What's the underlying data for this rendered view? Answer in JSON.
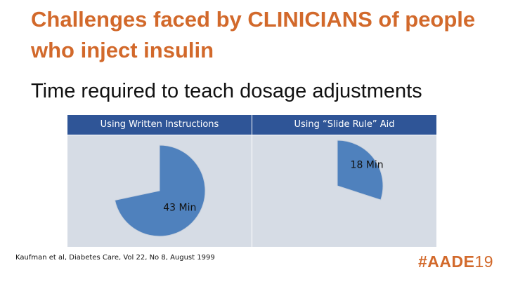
{
  "slide": {
    "title": "Challenges faced by CLINICIANS of people who inject insulin",
    "subtitle": "Time required to teach dosage adjustments",
    "citation": "Kaufman et al, Diabetes Care, Vol 22, No 8, August 1999",
    "logo": {
      "hash_text": "#AADE",
      "year_text": "19"
    }
  },
  "colors": {
    "title": "#d2692b",
    "header_bg": "#2f5597",
    "panel_bg": "#d6dce5",
    "pie_fill": "#4f81bd",
    "logo": "#d2692b"
  },
  "chart_data": [
    {
      "type": "pie",
      "title": "Using Written Instructions",
      "values": [
        43
      ],
      "labels": [
        "43 Min"
      ],
      "full_circle_minutes": 60,
      "unit": "Min"
    },
    {
      "type": "pie",
      "title": "Using “Slide Rule” Aid",
      "values": [
        18
      ],
      "labels": [
        "18 Min"
      ],
      "full_circle_minutes": 60,
      "unit": "Min"
    }
  ]
}
